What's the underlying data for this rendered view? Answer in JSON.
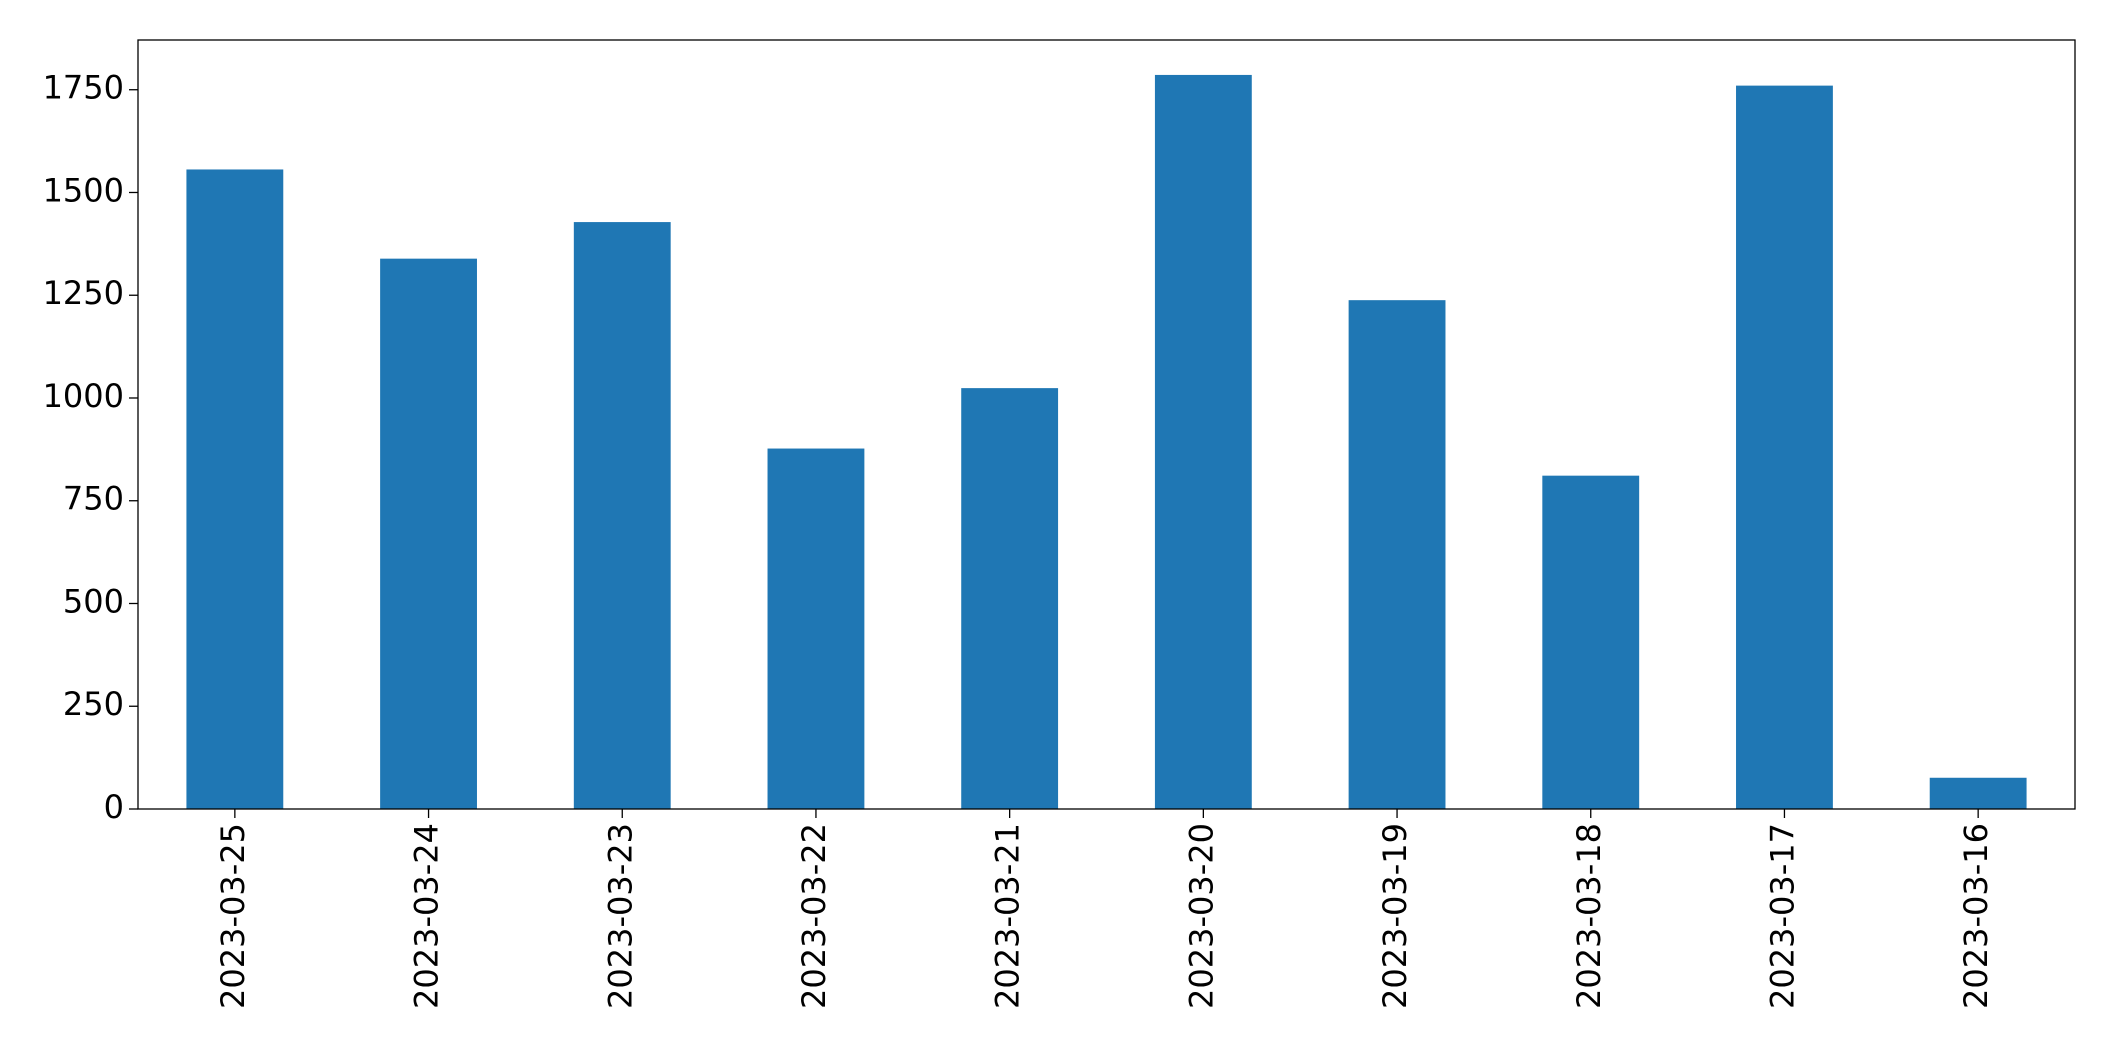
{
  "chart_data": {
    "type": "bar",
    "categories": [
      "2023-03-25",
      "2023-03-24",
      "2023-03-23",
      "2023-03-22",
      "2023-03-21",
      "2023-03-20",
      "2023-03-19",
      "2023-03-18",
      "2023-03-17",
      "2023-03-16"
    ],
    "values": [
      1556,
      1339,
      1428,
      877,
      1024,
      1786,
      1238,
      811,
      1760,
      76
    ],
    "color": "#1f77b4",
    "ylim": [
      0,
      1871
    ],
    "yticks": [
      0,
      250,
      500,
      750,
      1000,
      1250,
      1500,
      1750
    ],
    "grid": false
  }
}
